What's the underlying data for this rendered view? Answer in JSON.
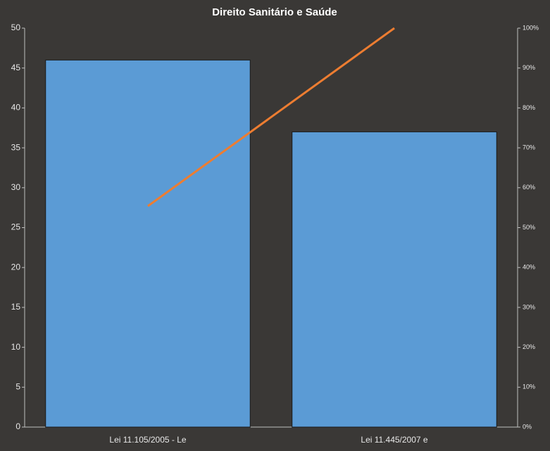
{
  "chart_data": {
    "type": "pareto",
    "title": "Direito  Sanitário  e Saúde",
    "categories": [
      "Lei 11.105/2005 - Le",
      "Lei 11.445/2007 e"
    ],
    "series": [
      {
        "type": "bar",
        "color": "#5b9bd5",
        "values": [
          46,
          37
        ]
      },
      {
        "type": "line",
        "color": "#ed7d31",
        "axis": "y2",
        "values": [
          55.4,
          100
        ]
      }
    ],
    "ylim": [
      0,
      50
    ],
    "yticks": [
      0,
      5,
      10,
      15,
      20,
      25,
      30,
      35,
      40,
      45,
      50
    ],
    "y2lim": [
      0,
      100
    ],
    "y2ticks": [
      {
        "value": 0,
        "label": "0%"
      },
      {
        "value": 10,
        "label": "10%"
      },
      {
        "value": 20,
        "label": "20%"
      },
      {
        "value": 30,
        "label": "30%"
      },
      {
        "value": 40,
        "label": "40%"
      },
      {
        "value": 50,
        "label": "50%"
      },
      {
        "value": 60,
        "label": "60%"
      },
      {
        "value": 70,
        "label": "70%"
      },
      {
        "value": 80,
        "label": "80%"
      },
      {
        "value": 90,
        "label": "90%"
      },
      {
        "value": 100,
        "label": "100%"
      }
    ]
  }
}
